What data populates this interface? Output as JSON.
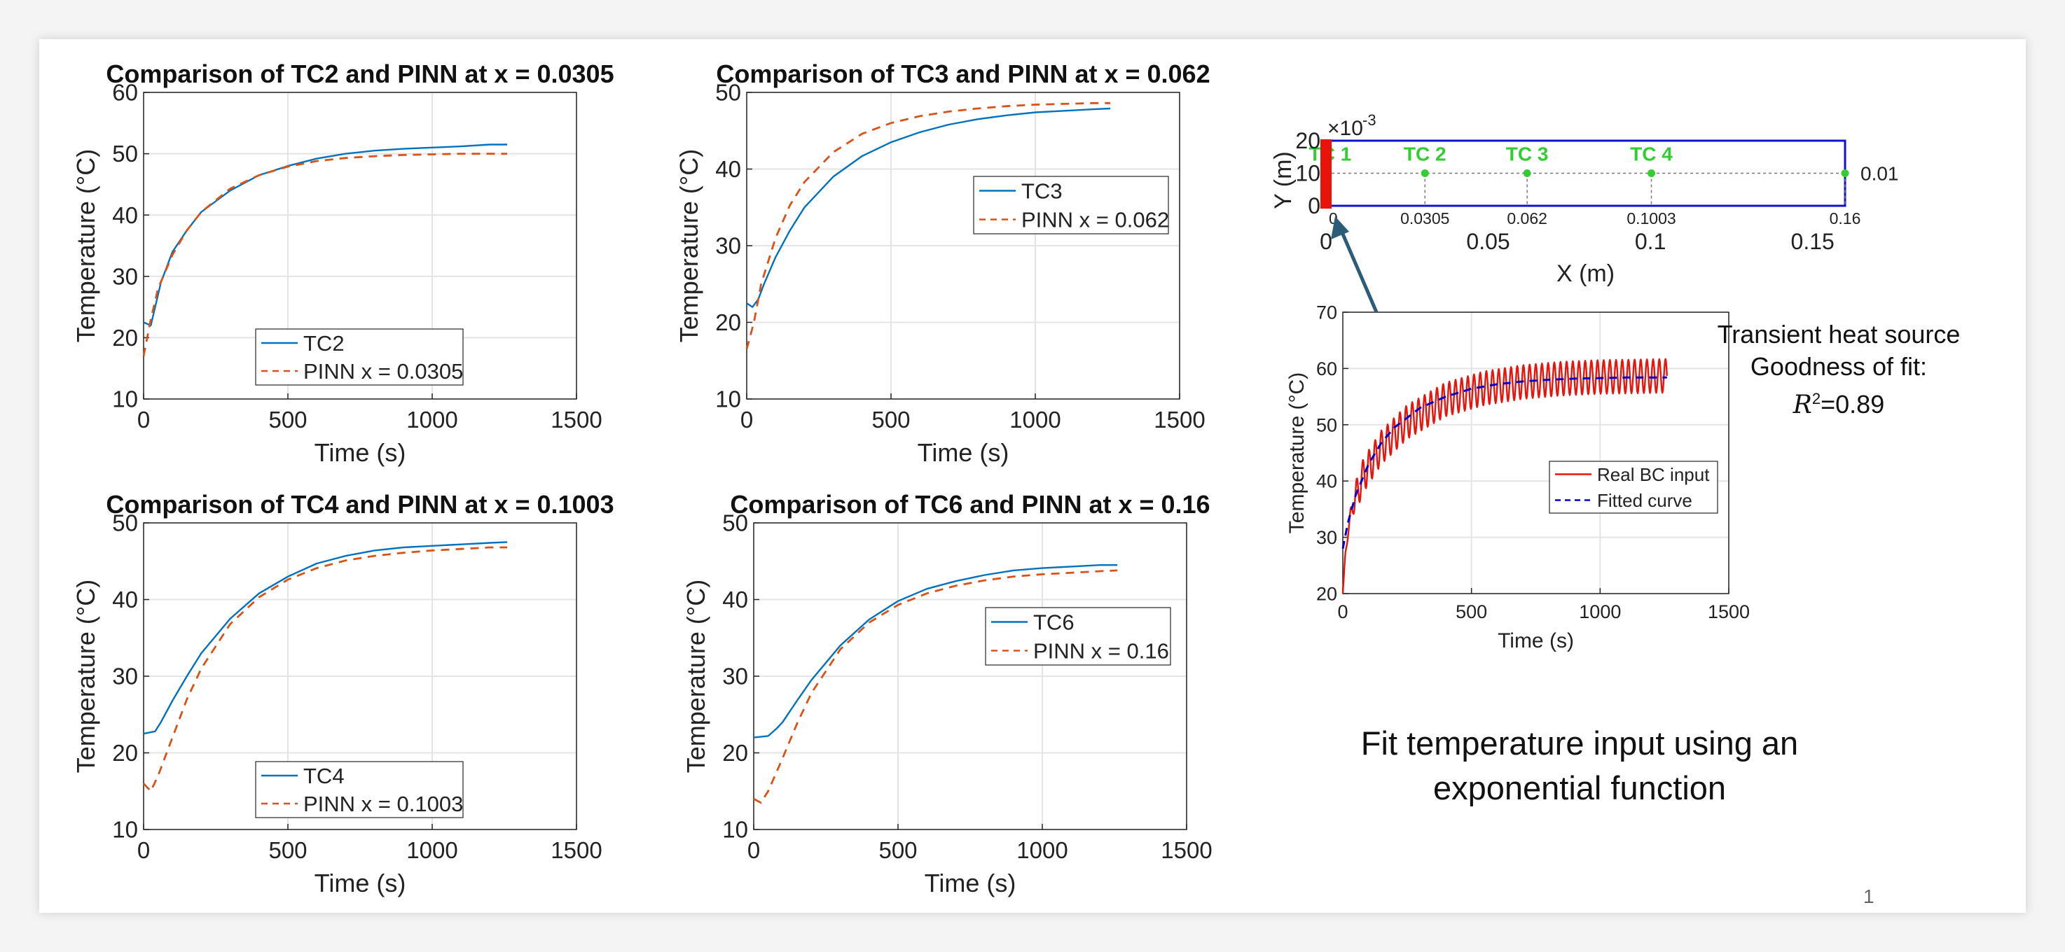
{
  "slide": {
    "caption_line1": "Fit temperature input using an",
    "caption_line2": "exponential function",
    "heat_source_label": "Transient heat source",
    "goodness_label": "Goodness of fit:",
    "r2_symbol": "R",
    "r2_exponent": "2",
    "r2_value": "=0.89",
    "page_number": "1"
  },
  "colors": {
    "tc_line": "#0072BD",
    "pinn_line": "#D95319",
    "real_bc": "#E8140C",
    "fitted": "#0000CC",
    "geometry_box": "#1010D0",
    "sensor": "#33CC33",
    "heat_source_bar": "#E8140C",
    "arrow": "#2B5C78"
  },
  "chart_data": [
    {
      "type": "line",
      "title": "Comparison of TC2 and PINN at x = 0.0305",
      "xlabel": "Time (s)",
      "ylabel": "Temperature (°C)",
      "xlim": [
        0,
        1500
      ],
      "ylim": [
        10,
        60
      ],
      "xticks": [
        0,
        500,
        1000,
        1500
      ],
      "yticks": [
        10,
        20,
        30,
        40,
        50,
        60
      ],
      "grid": true,
      "legend_position": "bottom-center",
      "series": [
        {
          "name": "TC2",
          "style": "solid",
          "x": [
            0,
            25,
            40,
            60,
            100,
            150,
            200,
            300,
            400,
            500,
            600,
            700,
            800,
            900,
            1000,
            1100,
            1200,
            1260
          ],
          "y": [
            22.5,
            22,
            25,
            29,
            34,
            37.5,
            40.5,
            44,
            46.5,
            48,
            49.2,
            50,
            50.5,
            50.8,
            51,
            51.2,
            51.5,
            51.5
          ]
        },
        {
          "name": "PINN x = 0.0305",
          "style": "dashed",
          "x": [
            0,
            25,
            50,
            100,
            150,
            200,
            300,
            400,
            500,
            600,
            700,
            800,
            900,
            1000,
            1100,
            1200,
            1260
          ],
          "y": [
            17,
            23,
            28,
            33.5,
            37.5,
            40.5,
            44.3,
            46.5,
            47.9,
            48.8,
            49.3,
            49.6,
            49.8,
            49.9,
            50,
            50,
            50
          ]
        }
      ]
    },
    {
      "type": "line",
      "title": "Comparison of TC3 and PINN at x = 0.062",
      "xlabel": "Time (s)",
      "ylabel": "Temperature (°C)",
      "xlim": [
        0,
        1500
      ],
      "ylim": [
        10,
        50
      ],
      "xticks": [
        0,
        500,
        1000,
        1500
      ],
      "yticks": [
        10,
        20,
        30,
        40,
        50
      ],
      "grid": true,
      "legend_position": "right-middle",
      "series": [
        {
          "name": "TC3",
          "style": "solid",
          "x": [
            0,
            20,
            40,
            60,
            100,
            150,
            200,
            300,
            400,
            500,
            600,
            700,
            800,
            900,
            1000,
            1100,
            1200,
            1260
          ],
          "y": [
            22.5,
            22,
            23,
            25,
            28.5,
            32,
            35,
            39,
            41.7,
            43.5,
            44.8,
            45.8,
            46.5,
            47,
            47.4,
            47.6,
            47.8,
            47.9
          ]
        },
        {
          "name": "PINN x = 0.062",
          "style": "dashed",
          "x": [
            0,
            25,
            50,
            100,
            150,
            200,
            300,
            400,
            500,
            600,
            700,
            800,
            900,
            1000,
            1100,
            1200,
            1260
          ],
          "y": [
            16.5,
            20,
            25,
            31,
            35.3,
            38.3,
            42.2,
            44.6,
            46,
            46.9,
            47.5,
            47.9,
            48.2,
            48.4,
            48.5,
            48.6,
            48.6
          ]
        }
      ]
    },
    {
      "type": "line",
      "title": "Comparison of TC4 and PINN at x = 0.1003",
      "xlabel": "Time (s)",
      "ylabel": "Temperature (°C)",
      "xlim": [
        0,
        1500
      ],
      "ylim": [
        10,
        50
      ],
      "xticks": [
        0,
        500,
        1000,
        1500
      ],
      "yticks": [
        10,
        20,
        30,
        40,
        50
      ],
      "grid": true,
      "legend_position": "bottom-center",
      "series": [
        {
          "name": "TC4",
          "style": "solid",
          "x": [
            0,
            40,
            60,
            100,
            150,
            200,
            300,
            400,
            500,
            600,
            700,
            800,
            900,
            1000,
            1100,
            1200,
            1260
          ],
          "y": [
            22.5,
            22.8,
            24,
            26.8,
            30,
            33,
            37.5,
            40.8,
            43,
            44.7,
            45.7,
            46.4,
            46.8,
            47,
            47.2,
            47.4,
            47.5
          ]
        },
        {
          "name": "PINN x = 0.1003",
          "style": "dashed",
          "x": [
            0,
            25,
            50,
            100,
            150,
            200,
            300,
            400,
            500,
            600,
            700,
            800,
            900,
            1000,
            1100,
            1200,
            1260
          ],
          "y": [
            16,
            15,
            17,
            22,
            27,
            31,
            36.8,
            40.3,
            42.6,
            44.1,
            45.1,
            45.7,
            46.1,
            46.4,
            46.6,
            46.8,
            46.8
          ]
        }
      ]
    },
    {
      "type": "line",
      "title": "Comparison of TC6 and PINN at x = 0.16",
      "xlabel": "Time (s)",
      "ylabel": "Temperature (°C)",
      "xlim": [
        0,
        1500
      ],
      "ylim": [
        10,
        50
      ],
      "xticks": [
        0,
        500,
        1000,
        1500
      ],
      "yticks": [
        10,
        20,
        30,
        40,
        50
      ],
      "grid": true,
      "legend_position": "right-middle",
      "series": [
        {
          "name": "TC6",
          "style": "solid",
          "x": [
            0,
            50,
            80,
            100,
            150,
            200,
            300,
            400,
            500,
            600,
            700,
            800,
            900,
            1000,
            1100,
            1200,
            1260
          ],
          "y": [
            22,
            22.2,
            23.2,
            24,
            26.8,
            29.5,
            34,
            37.4,
            39.8,
            41.4,
            42.4,
            43.2,
            43.8,
            44.1,
            44.3,
            44.5,
            44.5
          ]
        },
        {
          "name": "PINN x = 0.16",
          "style": "dashed",
          "x": [
            0,
            25,
            50,
            100,
            150,
            200,
            300,
            400,
            500,
            600,
            700,
            800,
            900,
            1000,
            1100,
            1200,
            1260
          ],
          "y": [
            14,
            13.5,
            15,
            19.3,
            23.8,
            27.8,
            33.5,
            37,
            39.3,
            40.8,
            41.8,
            42.5,
            43,
            43.3,
            43.5,
            43.7,
            43.8
          ]
        }
      ]
    },
    {
      "type": "diagram",
      "xlabel": "X (m)",
      "ylabel": "Y (m)",
      "y_multiplier": "×10",
      "y_multiplier_exponent": "-3",
      "xlim": [
        0,
        0.16
      ],
      "ylim": [
        0,
        20
      ],
      "xticks": [
        "0",
        "0.05",
        "0.1",
        "0.15"
      ],
      "yticks": [
        "20",
        "10",
        "0"
      ],
      "domain_box": {
        "x": [
          0,
          0.16
        ],
        "y": [
          0,
          20
        ]
      },
      "centerline_y": 10,
      "centerline_label": "0.01",
      "heat_source_bar": {
        "x": 0,
        "y": [
          0,
          20
        ]
      },
      "sensors": [
        {
          "name": "TC 1",
          "x": 0,
          "x_label": "0"
        },
        {
          "name": "TC 2",
          "x": 0.0305,
          "x_label": "0.0305"
        },
        {
          "name": "TC 3",
          "x": 0.062,
          "x_label": "0.062"
        },
        {
          "name": "TC 4",
          "x": 0.1003,
          "x_label": "0.1003"
        },
        {
          "name": "",
          "x": 0.16,
          "x_label": "0.16"
        }
      ]
    },
    {
      "type": "line",
      "title": "",
      "xlabel": "Time (s)",
      "ylabel": "Temperature (°C)",
      "xlim": [
        0,
        1500
      ],
      "ylim": [
        20,
        70
      ],
      "xticks": [
        0,
        500,
        1000,
        1500
      ],
      "yticks": [
        20,
        30,
        40,
        50,
        60,
        70
      ],
      "grid": true,
      "legend_position": "right-middle",
      "series": [
        {
          "name": "Real BC input",
          "style": "solid",
          "oscillation_amplitude": 3,
          "oscillation_period_s": 24,
          "x": [
            0,
            10,
            20,
            40,
            80,
            150,
            250,
            400,
            550,
            700,
            850,
            1000,
            1150,
            1260
          ],
          "y": [
            20,
            27,
            31,
            36,
            41,
            46,
            50.5,
            54.5,
            56.5,
            57.6,
            58.2,
            58.5,
            58.6,
            58.7
          ]
        },
        {
          "name": "Fitted curve",
          "style": "dashed",
          "x": [
            0,
            20,
            50,
            100,
            150,
            200,
            300,
            400,
            500,
            600,
            700,
            800,
            900,
            1000,
            1100,
            1200,
            1260
          ],
          "y": [
            28,
            32.6,
            37.5,
            43,
            46.8,
            49.5,
            53,
            55,
            56.4,
            57.2,
            57.7,
            58,
            58.2,
            58.3,
            58.4,
            58.4,
            58.4
          ]
        }
      ]
    }
  ]
}
